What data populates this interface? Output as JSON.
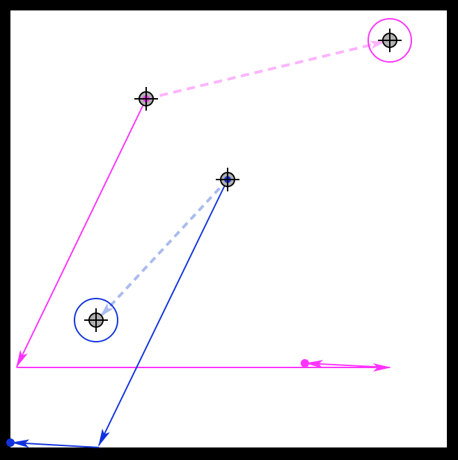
{
  "colors": {
    "frame": "#000000",
    "canvas": "#ffffff",
    "magenta": "#ff33ff",
    "magenta_light": "#ffb3ff",
    "blue": "#1133dd",
    "blue_light": "#aabbee",
    "target_fill": "#b0b0b0",
    "crosshair": "#000000"
  },
  "icons": {
    "target": "crosshair-target-icon",
    "goal": "goal-circle-icon",
    "start": "start-dot-icon"
  }
}
